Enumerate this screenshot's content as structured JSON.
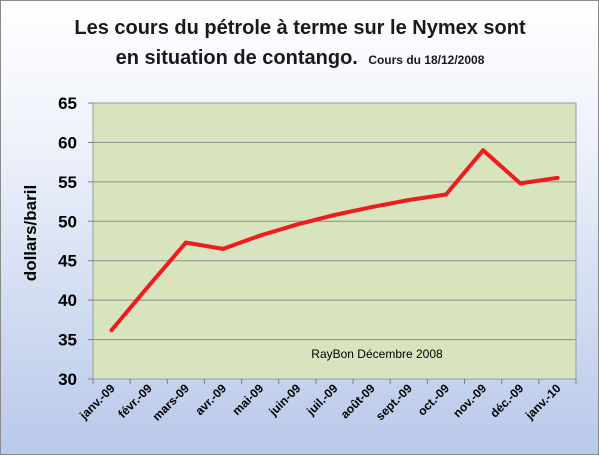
{
  "chart_data": {
    "type": "line",
    "title": "Les cours du pétrole à terme sur le Nymex sont",
    "title_line2": "en situation de contango.",
    "subtitle": "Cours du 18/12/2008",
    "ylabel": "dollars/baril",
    "xlabel": "",
    "ylim": [
      30,
      65
    ],
    "yticks": [
      30,
      35,
      40,
      45,
      50,
      55,
      60,
      65
    ],
    "grid": true,
    "categories": [
      "janv.-09",
      "févr.-09",
      "mars-09",
      "avr.-09",
      "mai-09",
      "juin-09",
      "juil.-09",
      "août-09",
      "sept.-09",
      "oct.-09",
      "nov.-09",
      "déc.-09",
      "janv.-10"
    ],
    "series": [
      {
        "color": "#ee1c1c",
        "values": [
          36.2,
          41.8,
          47.3,
          46.5,
          48.2,
          49.6,
          50.8,
          51.8,
          52.7,
          53.4,
          59.0,
          54.8,
          55.5
        ]
      }
    ],
    "annotation": "RayBon Décembre 2008",
    "plot_background": "#d7e4bd"
  }
}
